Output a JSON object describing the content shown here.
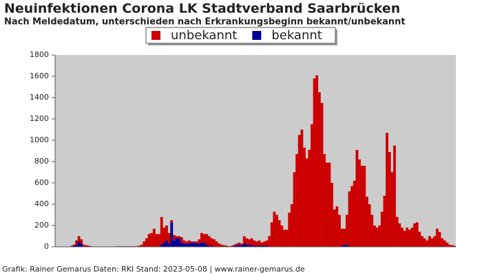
{
  "chart_data": {
    "type": "bar",
    "stacked": true,
    "title": "Neuinfektionen Corona LK Stadtverband Saarbrücken",
    "subtitle": "Nach Meldedatum, unterschieden nach Erkrankungsbeginn bekannt/unbekannt",
    "footer": "Grafik: Rainer Gemarus Daten: RKI Stand: 2023-05-08 | www.rainer-gemarus.de",
    "legend": "top",
    "grid": false,
    "ylim": [
      0,
      1800
    ],
    "yticks": [
      0,
      200,
      400,
      600,
      800,
      1000,
      1200,
      1400,
      1600,
      1800
    ],
    "categories": [
      null,
      null,
      null,
      null,
      null,
      null,
      null,
      null,
      null,
      null,
      null,
      null,
      null,
      null,
      null,
      null,
      null,
      null,
      null,
      null,
      null,
      null,
      null,
      null,
      null,
      null,
      null,
      null,
      null,
      null,
      null,
      null,
      null,
      null,
      null,
      null,
      null,
      null,
      null,
      null,
      null,
      null,
      null,
      null,
      null,
      null,
      null,
      null,
      null,
      null,
      null,
      null,
      null,
      null,
      null,
      null,
      null,
      null,
      null,
      null,
      null,
      null,
      null,
      null,
      null,
      null,
      null,
      null,
      null,
      null,
      null,
      null,
      null,
      null,
      null,
      null,
      null,
      null,
      null,
      null,
      null,
      null,
      null,
      null,
      null,
      null,
      null,
      null,
      null,
      null,
      null,
      null,
      null,
      null,
      null,
      null,
      null,
      null,
      null,
      null,
      null,
      null,
      null,
      null,
      null,
      null,
      null,
      null,
      null,
      null,
      null,
      null,
      null,
      null,
      null,
      null,
      null,
      null,
      null,
      null,
      null,
      null,
      null,
      null,
      null,
      null,
      null,
      null,
      null,
      null,
      null,
      null,
      null,
      null,
      null,
      null,
      null,
      null,
      null,
      null,
      null,
      null,
      null,
      null,
      null,
      null,
      null,
      null,
      null,
      null,
      null,
      null,
      null,
      null,
      null,
      null,
      null,
      null,
      null,
      null
    ],
    "series": [
      {
        "name": "bekannt",
        "color": "#000099",
        "values": [
          0,
          0,
          0,
          0,
          0,
          0,
          5,
          10,
          20,
          50,
          30,
          5,
          0,
          0,
          0,
          0,
          0,
          0,
          0,
          0,
          0,
          0,
          0,
          0,
          0,
          0,
          0,
          0,
          0,
          0,
          0,
          0,
          0,
          0,
          0,
          0,
          0,
          0,
          0,
          0,
          0,
          0,
          20,
          40,
          60,
          30,
          230,
          60,
          80,
          80,
          40,
          30,
          30,
          30,
          40,
          40,
          30,
          30,
          40,
          40,
          20,
          10,
          10,
          0,
          0,
          0,
          0,
          0,
          0,
          0,
          5,
          10,
          15,
          20,
          15,
          30,
          20,
          20,
          15,
          10,
          10,
          10,
          10,
          10,
          10,
          0,
          0,
          0,
          0,
          0,
          0,
          0,
          0,
          0,
          0,
          0,
          0,
          0,
          0,
          0,
          0,
          0,
          0,
          0,
          0,
          0,
          0,
          0,
          0,
          0,
          0,
          0,
          0,
          0,
          10,
          20,
          20,
          0,
          0,
          0,
          0,
          0,
          0,
          0,
          0,
          0,
          0,
          0,
          0,
          0,
          0,
          0,
          0,
          0,
          0,
          0,
          0,
          0,
          0,
          0,
          0,
          0,
          0,
          0,
          0,
          0,
          0,
          0,
          0,
          0,
          0,
          0,
          0,
          0,
          0,
          0,
          0,
          0,
          0,
          0
        ]
      },
      {
        "name": "unbekannt",
        "color": "#cc0000",
        "values": [
          0,
          0,
          0,
          0,
          0,
          0,
          5,
          10,
          40,
          50,
          40,
          15,
          15,
          10,
          5,
          0,
          0,
          0,
          0,
          0,
          0,
          0,
          0,
          0,
          5,
          5,
          5,
          5,
          5,
          5,
          5,
          5,
          5,
          10,
          20,
          50,
          80,
          120,
          130,
          170,
          120,
          120,
          260,
          140,
          140,
          100,
          20,
          50,
          20,
          20,
          50,
          30,
          20,
          30,
          10,
          10,
          20,
          40,
          90,
          80,
          100,
          90,
          70,
          70,
          50,
          30,
          20,
          15,
          10,
          5,
          5,
          10,
          15,
          20,
          15,
          70,
          60,
          50,
          65,
          50,
          40,
          50,
          30,
          40,
          50,
          100,
          230,
          330,
          300,
          250,
          200,
          160,
          160,
          320,
          400,
          700,
          870,
          1050,
          1100,
          930,
          830,
          910,
          1150,
          1580,
          1610,
          1450,
          1350,
          870,
          790,
          790,
          600,
          350,
          380,
          300,
          160,
          150,
          280,
          520,
          570,
          620,
          910,
          820,
          760,
          760,
          470,
          400,
          300,
          200,
          180,
          200,
          330,
          480,
          1070,
          890,
          700,
          950,
          280,
          220,
          180,
          150,
          180,
          160,
          180,
          220,
          230,
          140,
          100,
          80,
          60,
          100,
          80,
          100,
          170,
          140,
          80,
          60,
          40,
          20,
          15,
          10
        ]
      }
    ]
  }
}
